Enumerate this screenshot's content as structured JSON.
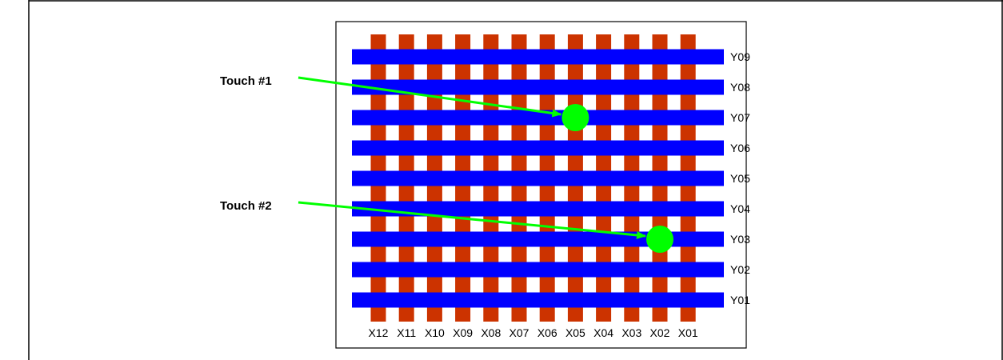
{
  "diagram": {
    "columns": [
      "X12",
      "X11",
      "X10",
      "X09",
      "X08",
      "X07",
      "X06",
      "X05",
      "X04",
      "X03",
      "X02",
      "X01"
    ],
    "rows": [
      "Y09",
      "Y08",
      "Y07",
      "Y06",
      "Y05",
      "Y04",
      "Y03",
      "Y02",
      "Y01"
    ],
    "touches": [
      {
        "label": "Touch #1",
        "column": "X05",
        "row": "Y07"
      },
      {
        "label": "Touch #2",
        "column": "X02",
        "row": "Y03"
      }
    ],
    "colors": {
      "column_electrode": "#cc3300",
      "row_electrode": "#0000ff",
      "touch": "#00ff00",
      "arrow": "#00ff00",
      "border": "#000000"
    }
  }
}
